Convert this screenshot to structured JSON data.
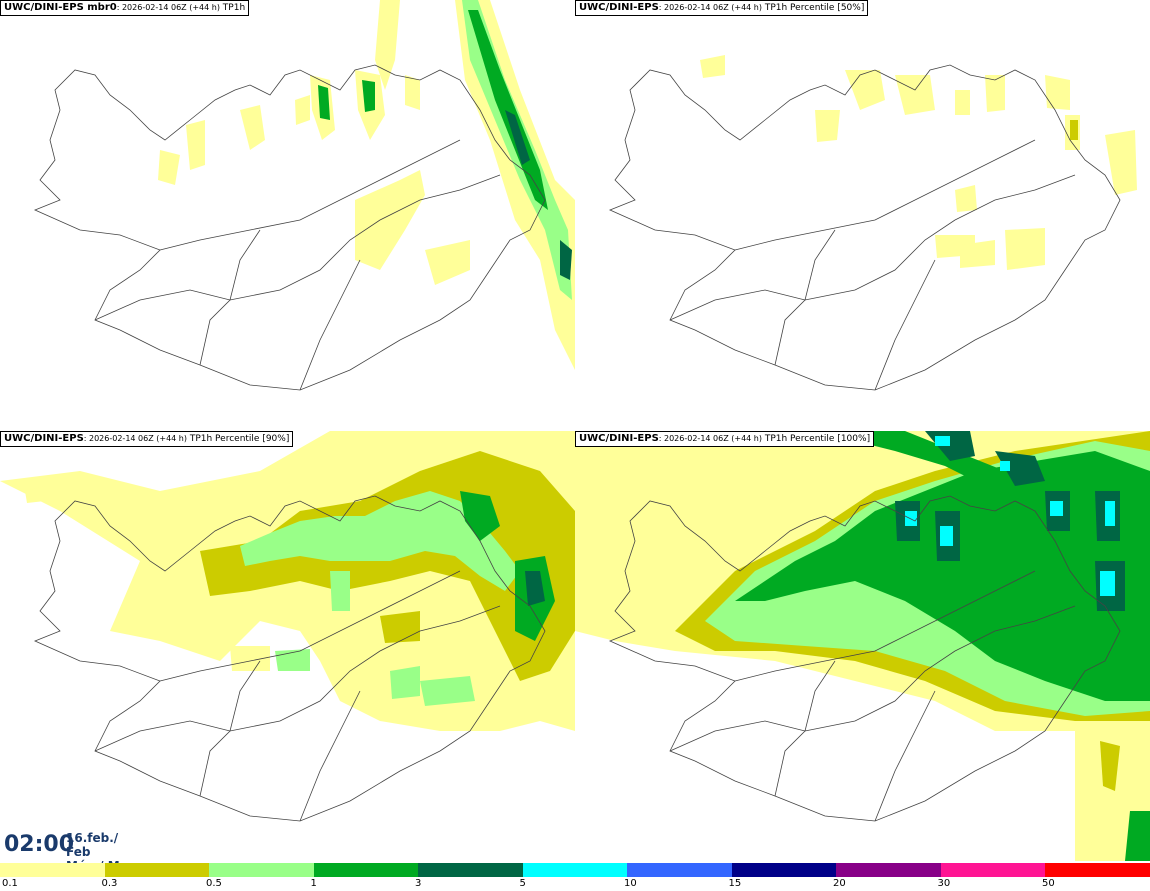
{
  "panels": [
    {
      "model": "UWC/DINI-EPS mbr0",
      "time": ": 2026-02-14 06Z (+44 h)",
      "field": " TP1h"
    },
    {
      "model": "UWC/DINI-EPS",
      "time": ": 2026-02-14 06Z (+44 h)",
      "field": " TP1h Percentile [50%]"
    },
    {
      "model": "UWC/DINI-EPS",
      "time": ": 2026-02-14 06Z (+44 h)",
      "field": " TP1h Percentile [90%]"
    },
    {
      "model": "UWC/DINI-EPS",
      "time": ": 2026-02-14 06Z (+44 h)",
      "field": " TP1h Percentile [100%]"
    }
  ],
  "valid_time": {
    "hour": "02:00",
    "date_line1": "16.feb./ Feb",
    "date_line2": "Mán./ Mon"
  },
  "legend": {
    "ticks": [
      "0.1",
      "0.3",
      "0.5",
      "1",
      "3",
      "5",
      "10",
      "15",
      "20",
      "30",
      "50"
    ],
    "colors": [
      "#ffff99",
      "#cccc00",
      "#99ff88",
      "#00aa22",
      "#006644",
      "#00ffff",
      "#3366ff",
      "#000088",
      "#880088",
      "#ff1493",
      "#ff0000"
    ]
  }
}
